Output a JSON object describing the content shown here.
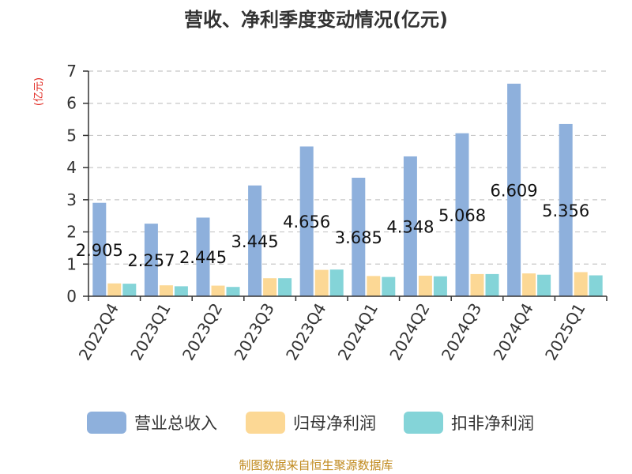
{
  "chart_data": {
    "type": "bar",
    "title": "营收、净利季度变动情况(亿元)",
    "unit_label": "(亿元)",
    "categories": [
      "2022Q4",
      "2023Q1",
      "2023Q2",
      "2023Q3",
      "2023Q4",
      "2024Q1",
      "2024Q2",
      "2024Q3",
      "2024Q4",
      "2025Q1"
    ],
    "series": [
      {
        "name": "营业总收入",
        "color": "#8eb0dc",
        "values": [
          2.905,
          2.257,
          2.445,
          3.445,
          4.656,
          3.685,
          4.348,
          5.068,
          6.609,
          5.356
        ],
        "labels": [
          "2.905",
          "2.257",
          "2.445",
          "3.445",
          "4.656",
          "3.685",
          "4.348",
          "5.068",
          "6.609",
          "5.356"
        ]
      },
      {
        "name": "归母净利润",
        "color": "#fcd895",
        "values": [
          0.4,
          0.34,
          0.33,
          0.56,
          0.82,
          0.63,
          0.64,
          0.69,
          0.71,
          0.75
        ]
      },
      {
        "name": "扣非净利润",
        "color": "#84d4d8",
        "values": [
          0.39,
          0.31,
          0.29,
          0.56,
          0.83,
          0.6,
          0.62,
          0.69,
          0.67,
          0.65
        ]
      }
    ],
    "yticks": [
      "0",
      "1",
      "2",
      "3",
      "4",
      "5",
      "6",
      "7"
    ],
    "ylim": [
      0,
      7
    ],
    "grid": true,
    "legend_position": "bottom"
  },
  "footer": {
    "source": "制图数据来自恒生聚源数据库"
  }
}
